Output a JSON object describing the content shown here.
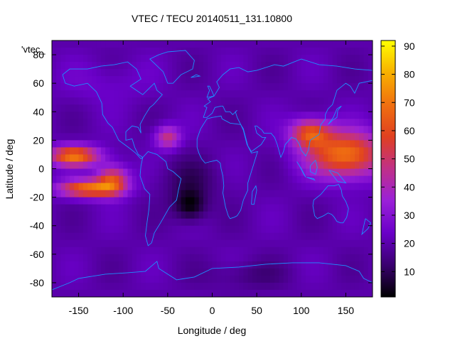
{
  "chart_data": {
    "type": "heatmap",
    "title": "VTEC / TECU 20140511_131.10800",
    "xlabel": "Longitude / deg",
    "ylabel": "Latitude / deg",
    "key_label": "'vtec_",
    "xlim": [
      -180,
      180
    ],
    "ylim": [
      -90,
      90
    ],
    "x_ticks": [
      -150,
      -100,
      -50,
      0,
      50,
      100,
      150
    ],
    "y_ticks": [
      -80,
      -60,
      -40,
      -20,
      0,
      20,
      40,
      60,
      80
    ],
    "colorbar": {
      "min": 1,
      "max": 92,
      "ticks": [
        10,
        20,
        30,
        40,
        50,
        60,
        70,
        80,
        90
      ],
      "palette": [
        "#000000",
        "#3a0070",
        "#6a00c8",
        "#9a20d8",
        "#c03088",
        "#e04020",
        "#f07010",
        "#f8b000",
        "#ffff00"
      ]
    },
    "overlay_color": "#1e90ff",
    "field_features": {
      "background_level": 20,
      "equatorial_anomaly_pacific_peak": 70,
      "equatorial_anomaly_asia_peak": 70,
      "south_atlantic_minimum": 2
    }
  }
}
